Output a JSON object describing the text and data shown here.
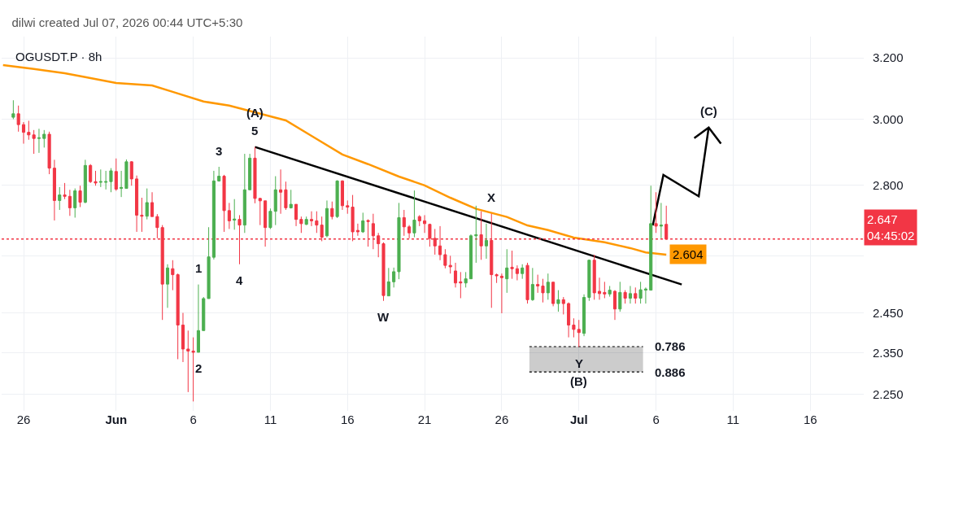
{
  "chart_data": {
    "type": "candlestick",
    "title": "dilwi created Jul 07, 2026 00:44 UTC+5:30",
    "subtitle": "OGUSDT.P · 8h",
    "log": true,
    "grid": true,
    "xlim": [
      "2026-05-24T19:20",
      "2026-07-19T16:45"
    ],
    "xticks": [
      {
        "value": "2026-05-26T05:30",
        "label": "26"
      },
      {
        "value": "2026-06-01T05:30",
        "label": "Jun"
      },
      {
        "value": "2026-06-06T05:30",
        "label": "6"
      },
      {
        "value": "2026-06-11T05:30",
        "label": "11"
      },
      {
        "value": "2026-06-16T05:30",
        "label": "16"
      },
      {
        "value": "2026-06-21T05:30",
        "label": "21"
      },
      {
        "value": "2026-06-26T05:30",
        "label": "26"
      },
      {
        "value": "2026-07-01T05:30",
        "label": "Jul"
      },
      {
        "value": "2026-07-06T05:30",
        "label": "6"
      },
      {
        "value": "2026-07-11T05:30",
        "label": "11"
      },
      {
        "value": "2026-07-16T05:30",
        "label": "16"
      }
    ],
    "ylim": [
      2.211,
      3.272
    ],
    "yticks": [
      {
        "value": 3.2,
        "label": "3.200"
      },
      {
        "value": 3.0,
        "label": "3.000"
      },
      {
        "value": 2.8,
        "label": "2.800"
      },
      {
        "value": 2.6,
        "label": null
      },
      {
        "value": 2.45,
        "label": "2.450"
      },
      {
        "value": 2.35,
        "label": "2.350"
      },
      {
        "value": 2.25,
        "label": "2.250"
      }
    ],
    "series": [
      {
        "type": "line",
        "color": "#ff9800",
        "x": [
          "2026-05-24T21:30",
          "2026-05-26T21:30",
          "2026-05-28T21:30",
          "2026-05-30T05:30",
          "2026-06-01T05:30",
          "2026-06-03T13:30",
          "2026-06-04T21:30",
          "2026-06-06T21:30",
          "2026-06-08T13:30",
          "2026-06-11T05:30",
          "2026-06-12T05:30",
          "2026-06-13T21:30",
          "2026-06-15T21:30",
          "2026-06-17T13:30",
          "2026-06-19T13:30",
          "2026-06-21T05:30",
          "2026-06-22T21:30",
          "2026-06-24T13:30",
          "2026-06-26T13:30",
          "2026-06-27T21:30",
          "2026-06-29T05:30",
          "2026-06-30T21:30",
          "2026-07-02T21:30",
          "2026-07-04T13:30",
          "2026-07-05T13:30",
          "2026-07-06T21:30"
        ],
        "values": [
          3.176,
          3.163,
          3.149,
          3.136,
          3.117,
          3.109,
          3.088,
          3.057,
          3.044,
          3.01,
          2.997,
          2.949,
          2.892,
          2.863,
          2.826,
          2.8,
          2.764,
          2.732,
          2.709,
          2.685,
          2.672,
          2.651,
          2.638,
          2.622,
          2.61,
          2.604
        ],
        "value_labels": [
          null,
          null,
          null,
          null,
          null,
          null,
          null,
          null,
          null,
          null,
          null,
          null,
          null,
          null,
          null,
          null,
          null,
          null,
          null,
          null,
          null,
          null,
          null,
          null,
          null,
          "2.604"
        ]
      },
      {
        "type": "line",
        "color": "#000000",
        "x": [
          "2026-06-10T05:30",
          "2026-07-07T21:30"
        ],
        "values": [
          2.915,
          2.524
        ]
      },
      {
        "type": "line",
        "color": "#000000",
        "x": [
          "2026-07-06T00:30",
          "2026-07-06T17:00",
          "2026-07-09T00:00",
          "2026-07-09T15:30",
          "2026-07-08T17:00",
          "2026-07-09T15:30",
          "2026-07-10T10:30"
        ],
        "values": [
          2.685,
          2.831,
          2.768,
          2.975,
          2.942,
          2.975,
          2.925
        ]
      },
      {
        "type": "line",
        "color": "#000000",
        "line_style": "dotted",
        "x": [
          "2026-06-28T00:30",
          "2026-07-05T09:20"
        ],
        "values": [
          2.365,
          2.365
        ],
        "lower": [
          2.303,
          2.303
        ],
        "upper": [
          2.365,
          2.365
        ]
      },
      {
        "type": "line",
        "color": "#000000",
        "line_style": "dotted",
        "x": [
          "2026-06-28T00:30",
          "2026-07-05T09:20"
        ],
        "values": [
          2.303,
          2.303
        ]
      },
      {
        "colors": [
          "#4caf50",
          "#f23645",
          "#f23645",
          "#f23645",
          "#f23645",
          "#4caf50",
          "#4caf50",
          "#f23645",
          "#f23645",
          "#4caf50",
          "#f23645",
          "#f23645",
          "#4caf50",
          "#f23645",
          "#4caf50",
          "#f23645",
          "#f23645",
          "#4caf50",
          "#4caf50",
          "#4caf50",
          "#f23645",
          "#4caf50",
          "#4caf50",
          "#f23645",
          "#f23645",
          "#f23645",
          "#4caf50",
          "#f23645",
          "#f23645",
          "#f23645",
          "#4caf50",
          "#f23645",
          "#f23645",
          "#f23645",
          "#f23645",
          "#f23645",
          "#4caf50",
          "#4caf50",
          "#4caf50",
          "#4caf50",
          "#4caf50",
          "#f23645",
          "#f23645",
          "#4caf50",
          "#f23645",
          "#4caf50",
          "#4caf50",
          "#f23645",
          "#f23645",
          "#f23645",
          "#4caf50",
          "#4caf50",
          "#f23645",
          "#f23645",
          "#4caf50",
          "#f23645",
          "#f23645",
          "#4caf50",
          "#f23645",
          "#f23645",
          "#f23645",
          "#4caf50",
          "#f23645",
          "#4caf50",
          "#f23645",
          "#f23645",
          "#f23645",
          "#f23645",
          "#4caf50",
          "#f23645",
          "#f23645",
          "#f23645",
          "#f23645",
          "#4caf50",
          "#4caf50",
          "#4caf50",
          "#f23645",
          "#f23645",
          "#4caf50",
          "#f23645",
          "#f23645",
          "#f23645",
          "#f23645",
          "#f23645",
          "#f23645",
          "#f23645",
          "#f23645",
          "#f23645",
          "#4caf50",
          "#4caf50",
          "#4caf50",
          "#f23645",
          "#4caf50",
          "#f23645",
          "#f23645",
          "#f23645",
          "#4caf50",
          "#f23645",
          "#f23645",
          "#4caf50",
          "#f23645",
          "#4caf50",
          "#f23645",
          "#f23645",
          "#4caf50",
          "#f23645",
          "#4caf50",
          "#f23645",
          "#f23645",
          "#f23645",
          "#f23645",
          "#4caf50",
          "#4caf50",
          "#f23645",
          "#f23645",
          "#f23645",
          "#4caf50",
          "#f23645",
          "#4caf50",
          "#f23645",
          "#4caf50",
          "#f23645",
          "#4caf50",
          "#4caf50",
          "#4caf50",
          "#f23645",
          "#4caf50",
          "#f23645"
        ],
        "x": [
          "2026-05-25T13:30",
          "2026-05-25T21:30",
          "2026-05-26T05:30",
          "2026-05-26T13:30",
          "2026-05-26T21:30",
          "2026-05-27T05:30",
          "2026-05-27T13:30",
          "2026-05-27T21:30",
          "2026-05-28T05:30",
          "2026-05-28T13:30",
          "2026-05-28T21:30",
          "2026-05-29T05:30",
          "2026-05-29T13:30",
          "2026-05-29T21:30",
          "2026-05-30T05:30",
          "2026-05-30T13:30",
          "2026-05-30T21:30",
          "2026-05-31T05:30",
          "2026-05-31T13:30",
          "2026-05-31T21:30",
          "2026-06-01T05:30",
          "2026-06-01T13:30",
          "2026-06-01T21:30",
          "2026-06-02T05:30",
          "2026-06-02T13:30",
          "2026-06-02T21:30",
          "2026-06-03T05:30",
          "2026-06-03T13:30",
          "2026-06-03T21:30",
          "2026-06-04T05:30",
          "2026-06-04T13:30",
          "2026-06-04T21:30",
          "2026-06-05T05:30",
          "2026-06-05T13:30",
          "2026-06-05T21:30",
          "2026-06-06T05:30",
          "2026-06-06T13:30",
          "2026-06-06T21:30",
          "2026-06-07T05:30",
          "2026-06-07T13:30",
          "2026-06-07T21:30",
          "2026-06-08T05:30",
          "2026-06-08T13:30",
          "2026-06-08T21:30",
          "2026-06-09T05:30",
          "2026-06-09T13:30",
          "2026-06-09T21:30",
          "2026-06-10T05:30",
          "2026-06-10T13:30",
          "2026-06-10T21:30",
          "2026-06-11T05:30",
          "2026-06-11T13:30",
          "2026-06-11T21:30",
          "2026-06-12T05:30",
          "2026-06-12T13:30",
          "2026-06-12T21:30",
          "2026-06-13T05:30",
          "2026-06-13T13:30",
          "2026-06-13T21:30",
          "2026-06-14T05:30",
          "2026-06-14T13:30",
          "2026-06-14T21:30",
          "2026-06-15T05:30",
          "2026-06-15T13:30",
          "2026-06-15T21:30",
          "2026-06-16T05:30",
          "2026-06-16T13:30",
          "2026-06-16T21:30",
          "2026-06-17T05:30",
          "2026-06-17T13:30",
          "2026-06-17T21:30",
          "2026-06-18T05:30",
          "2026-06-18T13:30",
          "2026-06-18T21:30",
          "2026-06-19T05:30",
          "2026-06-19T13:30",
          "2026-06-19T21:30",
          "2026-06-20T05:30",
          "2026-06-20T13:30",
          "2026-06-20T21:30",
          "2026-06-21T05:30",
          "2026-06-21T13:30",
          "2026-06-21T21:30",
          "2026-06-22T05:30",
          "2026-06-22T13:30",
          "2026-06-22T21:30",
          "2026-06-23T05:30",
          "2026-06-23T13:30",
          "2026-06-23T21:30",
          "2026-06-24T05:30",
          "2026-06-24T13:30",
          "2026-06-24T21:30",
          "2026-06-25T05:30",
          "2026-06-25T13:30",
          "2026-06-25T21:30",
          "2026-06-26T05:30",
          "2026-06-26T13:30",
          "2026-06-26T21:30",
          "2026-06-27T05:30",
          "2026-06-27T13:30",
          "2026-06-27T21:30",
          "2026-06-28T05:30",
          "2026-06-28T13:30",
          "2026-06-28T21:30",
          "2026-06-29T05:30",
          "2026-06-29T13:30",
          "2026-06-29T21:30",
          "2026-06-30T05:30",
          "2026-06-30T13:30",
          "2026-06-30T21:30",
          "2026-07-01T05:30",
          "2026-07-01T13:30",
          "2026-07-01T21:30",
          "2026-07-02T05:30",
          "2026-07-02T13:30",
          "2026-07-02T21:30",
          "2026-07-03T05:30",
          "2026-07-03T13:30",
          "2026-07-03T21:30",
          "2026-07-04T05:30",
          "2026-07-04T13:30",
          "2026-07-04T21:30",
          "2026-07-05T05:30",
          "2026-07-05T13:30",
          "2026-07-05T21:30",
          "2026-07-06T05:30",
          "2026-07-06T13:30",
          "2026-07-06T21:30"
        ],
        "ohlc": [
          [
            3.007,
            3.061,
            3.001,
            3.018
          ],
          [
            3.018,
            3.044,
            2.962,
            2.984
          ],
          [
            2.984,
            2.992,
            2.925,
            2.96
          ],
          [
            2.96,
            2.996,
            2.937,
            2.952
          ],
          [
            2.952,
            2.967,
            2.894,
            2.941
          ],
          [
            2.941,
            2.971,
            2.897,
            2.943
          ],
          [
            2.941,
            2.967,
            2.913,
            2.954
          ],
          [
            2.954,
            2.962,
            2.833,
            2.851
          ],
          [
            2.851,
            2.876,
            2.699,
            2.756
          ],
          [
            2.756,
            2.795,
            2.729,
            2.772
          ],
          [
            2.772,
            2.807,
            2.76,
            2.768
          ],
          [
            2.768,
            2.787,
            2.712,
            2.735
          ],
          [
            2.735,
            2.791,
            2.707,
            2.784
          ],
          [
            2.784,
            2.799,
            2.737,
            2.751
          ],
          [
            2.751,
            2.876,
            2.748,
            2.859
          ],
          [
            2.859,
            2.863,
            2.807,
            2.811
          ],
          [
            2.811,
            2.843,
            2.799,
            2.807
          ],
          [
            2.809,
            2.847,
            2.795,
            2.811
          ],
          [
            2.809,
            2.843,
            2.788,
            2.811
          ],
          [
            2.811,
            2.851,
            2.78,
            2.843
          ],
          [
            2.841,
            2.88,
            2.784,
            2.789
          ],
          [
            2.791,
            2.843,
            2.766,
            2.794
          ],
          [
            2.791,
            2.877,
            2.791,
            2.87
          ],
          [
            2.87,
            2.872,
            2.799,
            2.819
          ],
          [
            2.819,
            2.829,
            2.667,
            2.714
          ],
          [
            2.714,
            2.764,
            2.667,
            2.711
          ],
          [
            2.711,
            2.791,
            2.702,
            2.75
          ],
          [
            2.75,
            2.78,
            2.71,
            2.71
          ],
          [
            2.71,
            2.717,
            2.649,
            2.679
          ],
          [
            2.679,
            2.686,
            2.432,
            2.525
          ],
          [
            2.525,
            2.578,
            2.463,
            2.568
          ],
          [
            2.566,
            2.589,
            2.509,
            2.55
          ],
          [
            2.55,
            2.553,
            2.334,
            2.419
          ],
          [
            2.419,
            2.45,
            2.327,
            2.359
          ],
          [
            2.359,
            2.405,
            2.255,
            2.354
          ],
          [
            2.354,
            2.388,
            2.233,
            2.351
          ],
          [
            2.351,
            2.524,
            2.351,
            2.405
          ],
          [
            2.405,
            2.491,
            2.405,
            2.487
          ],
          [
            2.487,
            2.68,
            2.487,
            2.598
          ],
          [
            2.597,
            2.843,
            2.591,
            2.813
          ],
          [
            2.813,
            2.855,
            2.811,
            2.827
          ],
          [
            2.827,
            2.831,
            2.667,
            2.727
          ],
          [
            2.727,
            2.749,
            2.675,
            2.698
          ],
          [
            2.7,
            2.76,
            2.673,
            2.703
          ],
          [
            2.702,
            2.714,
            2.578,
            2.686
          ],
          [
            2.686,
            2.894,
            2.664,
            2.787
          ],
          [
            2.787,
            2.894,
            2.787,
            2.881
          ],
          [
            2.881,
            2.915,
            2.748,
            2.762
          ],
          [
            2.762,
            2.764,
            2.686,
            2.755
          ],
          [
            2.755,
            2.755,
            2.626,
            2.679
          ],
          [
            2.679,
            2.733,
            2.675,
            2.725
          ],
          [
            2.725,
            2.827,
            2.686,
            2.787
          ],
          [
            2.787,
            2.847,
            2.718,
            2.78
          ],
          [
            2.787,
            2.811,
            2.729,
            2.735
          ],
          [
            2.735,
            2.787,
            2.733,
            2.745
          ],
          [
            2.745,
            2.745,
            2.683,
            2.702
          ],
          [
            2.702,
            2.71,
            2.664,
            2.69
          ],
          [
            2.688,
            2.71,
            2.686,
            2.702
          ],
          [
            2.702,
            2.725,
            2.683,
            2.698
          ],
          [
            2.698,
            2.725,
            2.664,
            2.686
          ],
          [
            2.686,
            2.71,
            2.641,
            2.652
          ],
          [
            2.656,
            2.756,
            2.652,
            2.733
          ],
          [
            2.733,
            2.753,
            2.702,
            2.71
          ],
          [
            2.71,
            2.815,
            2.706,
            2.813
          ],
          [
            2.813,
            2.815,
            2.729,
            2.741
          ],
          [
            2.741,
            2.756,
            2.718,
            2.737
          ],
          [
            2.737,
            2.772,
            2.641,
            2.667
          ],
          [
            2.671,
            2.69,
            2.656,
            2.667
          ],
          [
            2.667,
            2.721,
            2.664,
            2.698
          ],
          [
            2.699,
            2.702,
            2.626,
            2.696
          ],
          [
            2.69,
            2.718,
            2.619,
            2.656
          ],
          [
            2.656,
            2.664,
            2.597,
            2.634
          ],
          [
            2.634,
            2.638,
            2.481,
            2.495
          ],
          [
            2.494,
            2.568,
            2.494,
            2.531
          ],
          [
            2.531,
            2.569,
            2.516,
            2.558
          ],
          [
            2.558,
            2.749,
            2.538,
            2.707
          ],
          [
            2.707,
            2.729,
            2.656,
            2.681
          ],
          [
            2.681,
            2.686,
            2.649,
            2.664
          ],
          [
            2.664,
            2.785,
            2.652,
            2.7
          ],
          [
            2.71,
            2.714,
            2.683,
            2.698
          ],
          [
            2.698,
            2.714,
            2.664,
            2.69
          ],
          [
            2.688,
            2.69,
            2.626,
            2.649
          ],
          [
            2.649,
            2.675,
            2.604,
            2.628
          ],
          [
            2.628,
            2.683,
            2.589,
            2.604
          ],
          [
            2.604,
            2.619,
            2.567,
            2.575
          ],
          [
            2.575,
            2.601,
            2.553,
            2.571
          ],
          [
            2.56,
            2.582,
            2.516,
            2.528
          ],
          [
            2.531,
            2.557,
            2.488,
            2.528
          ],
          [
            2.528,
            2.557,
            2.516,
            2.539
          ],
          [
            2.539,
            2.66,
            2.539,
            2.656
          ],
          [
            2.656,
            2.741,
            2.582,
            2.659
          ],
          [
            2.659,
            2.725,
            2.59,
            2.628
          ],
          [
            2.628,
            2.69,
            2.593,
            2.643
          ],
          [
            2.643,
            2.718,
            2.463,
            2.55
          ],
          [
            2.55,
            2.553,
            2.528,
            2.547
          ],
          [
            2.546,
            2.553,
            2.449,
            2.542
          ],
          [
            2.539,
            2.619,
            2.502,
            2.568
          ],
          [
            2.57,
            2.615,
            2.539,
            2.566
          ],
          [
            2.566,
            2.575,
            2.535,
            2.553
          ],
          [
            2.553,
            2.578,
            2.539,
            2.568
          ],
          [
            2.575,
            2.582,
            2.474,
            2.484
          ],
          [
            2.484,
            2.568,
            2.481,
            2.524
          ],
          [
            2.524,
            2.55,
            2.502,
            2.52
          ],
          [
            2.52,
            2.539,
            2.477,
            2.502
          ],
          [
            2.502,
            2.553,
            2.484,
            2.53
          ],
          [
            2.53,
            2.531,
            2.467,
            2.474
          ],
          [
            2.474,
            2.509,
            2.453,
            2.484
          ],
          [
            2.484,
            2.491,
            2.446,
            2.474
          ],
          [
            2.474,
            2.477,
            2.388,
            2.419
          ],
          [
            2.419,
            2.436,
            2.388,
            2.408
          ],
          [
            2.408,
            2.432,
            2.364,
            2.4
          ],
          [
            2.398,
            2.498,
            2.391,
            2.49
          ],
          [
            2.49,
            2.59,
            2.481,
            2.589
          ],
          [
            2.589,
            2.604,
            2.484,
            2.502
          ],
          [
            2.506,
            2.542,
            2.484,
            2.5
          ],
          [
            2.503,
            2.531,
            2.488,
            2.499
          ],
          [
            2.499,
            2.52,
            2.492,
            2.509
          ],
          [
            2.506,
            2.509,
            2.432,
            2.46
          ],
          [
            2.46,
            2.531,
            2.453,
            2.503
          ],
          [
            2.503,
            2.509,
            2.474,
            2.488
          ],
          [
            2.488,
            2.52,
            2.474,
            2.5
          ],
          [
            2.5,
            2.516,
            2.474,
            2.488
          ],
          [
            2.488,
            2.531,
            2.474,
            2.51
          ],
          [
            2.509,
            2.516,
            2.474,
            2.512
          ],
          [
            2.509,
            2.799,
            2.509,
            2.69
          ],
          [
            2.69,
            2.78,
            2.664,
            2.683
          ],
          [
            2.683,
            2.749,
            2.649,
            2.686
          ],
          [
            2.688,
            2.741,
            2.645,
            2.647
          ]
        ]
      }
    ],
    "ref_lines": [
      {
        "axis": "y",
        "value": 2.647,
        "label": "2.647\n04:45:02",
        "color": "#f23645",
        "line_style": "dotted"
      }
    ],
    "annotations": [
      {
        "text": "5",
        "x": "2026-06-10T05:30",
        "y": 2.915
      },
      {
        "text": "(A)",
        "x": "2026-06-10T05:30",
        "y": 2.915
      },
      {
        "text": "3",
        "x": "2026-06-07T21:30",
        "y": 2.855
      },
      {
        "text": "1",
        "x": "2026-06-06T13:30",
        "y": 2.524
      },
      {
        "text": "4",
        "x": "2026-06-09T05:30",
        "y": 2.578
      },
      {
        "text": "2",
        "x": "2026-06-06T13:30",
        "y": 2.351
      },
      {
        "text": "W",
        "x": "2026-06-18T13:30",
        "y": 2.481
      },
      {
        "text": "X",
        "x": "2026-06-25T13:30",
        "y": 2.718
      },
      {
        "text": "Y",
        "x": "2026-07-01T05:30",
        "y": 2.364
      },
      {
        "text": "(B)",
        "x": "2026-07-01T05:30",
        "y": 2.364
      },
      {
        "text": "(C)",
        "x": "2026-07-09T15:30",
        "y": 2.975
      },
      {
        "text": "0.786",
        "x": "2026-07-05T09:20",
        "y": 2.365
      },
      {
        "text": "0.886",
        "x": "2026-07-05T09:20",
        "y": 2.303
      }
    ]
  }
}
